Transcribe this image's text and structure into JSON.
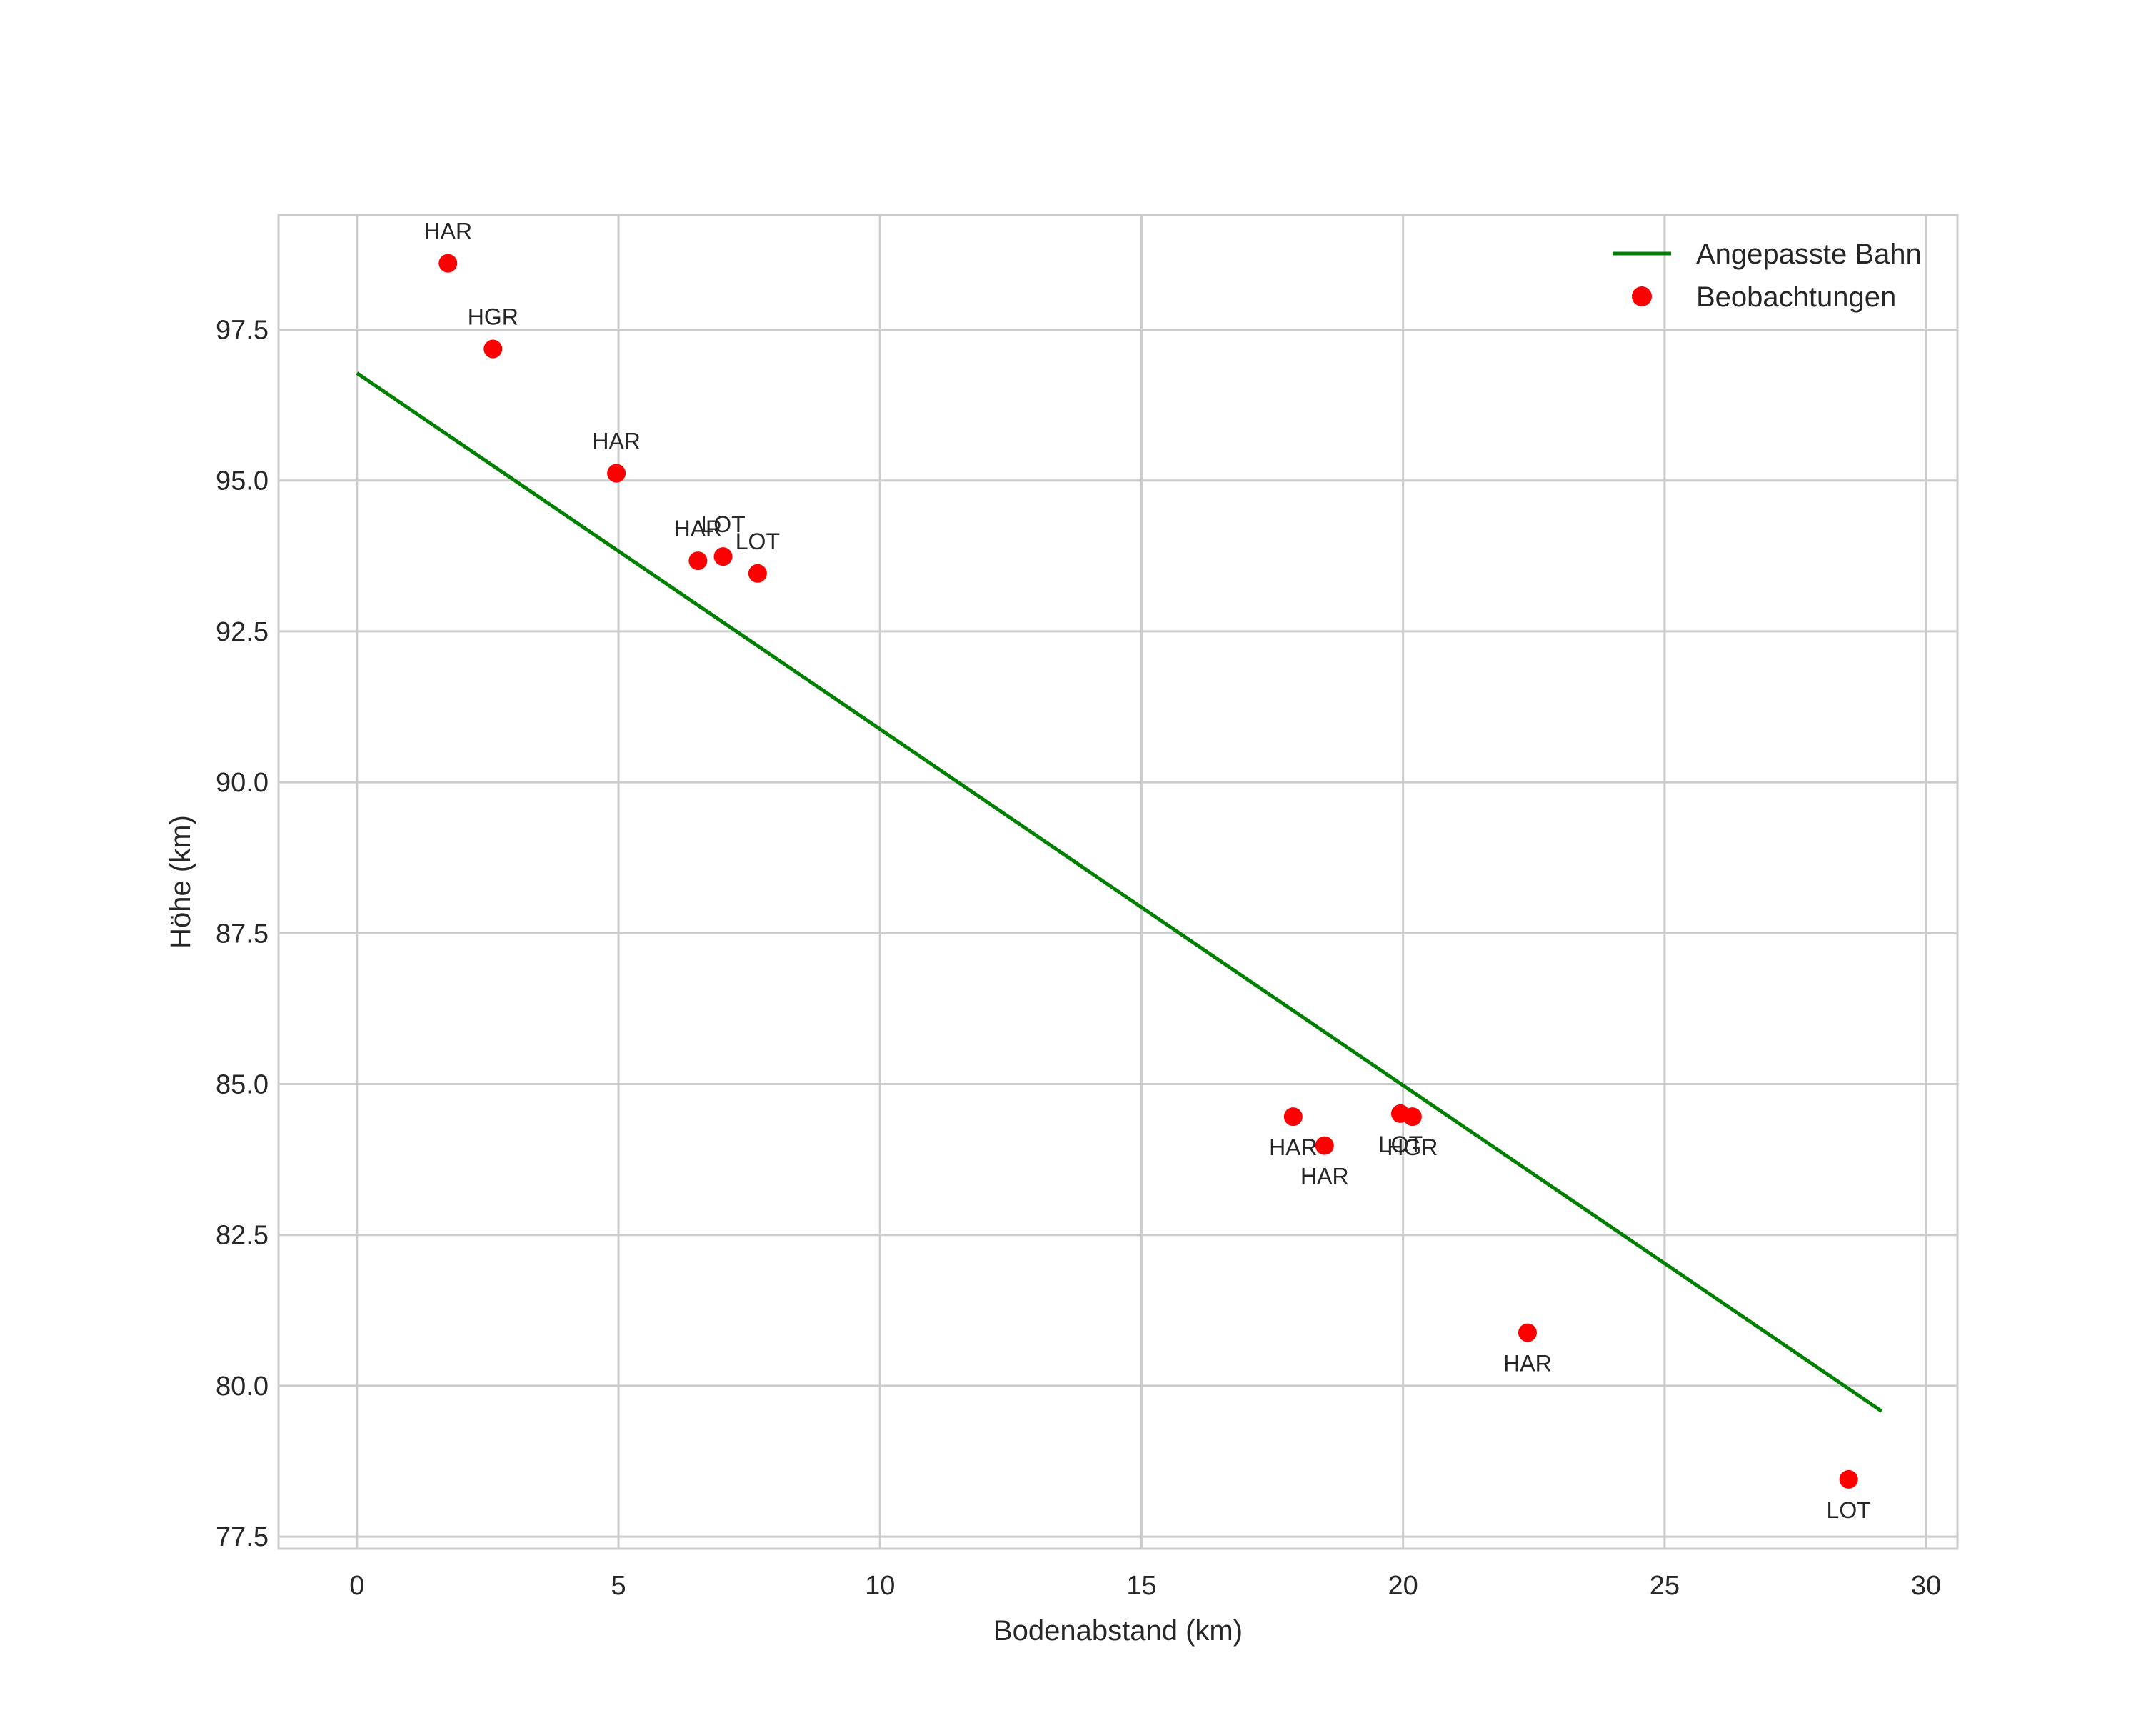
{
  "chart_data": {
    "type": "scatter",
    "title": "",
    "xlabel": "Bodenabstand (km)",
    "ylabel": "Höhe (km)",
    "xlim": [
      -1.5,
      30.6
    ],
    "ylim": [
      77.3,
      99.4
    ],
    "grid": true,
    "legend_position": "top-right",
    "x_ticks": [
      0,
      5,
      10,
      15,
      20,
      25,
      30
    ],
    "x_tick_labels": [
      "0",
      "5",
      "10",
      "15",
      "20",
      "25",
      "30"
    ],
    "y_ticks": [
      77.5,
      80.0,
      82.5,
      85.0,
      87.5,
      90.0,
      92.5,
      95.0,
      97.5
    ],
    "y_tick_labels": [
      "77.5",
      "80.0",
      "82.5",
      "85.0",
      "87.5",
      "90.0",
      "92.5",
      "95.0",
      "97.5"
    ],
    "series": [
      {
        "name": "Angepasste Bahn",
        "kind": "line",
        "color": "#008000",
        "x": [
          0,
          29.15
        ],
        "y": [
          96.78,
          79.58
        ]
      },
      {
        "name": "Beobachtungen",
        "kind": "scatter",
        "color": "#ff0000",
        "points": [
          {
            "x": 1.74,
            "y": 98.6,
            "label": "HAR",
            "label_pos": "above"
          },
          {
            "x": 2.6,
            "y": 97.18,
            "label": "HGR",
            "label_pos": "above"
          },
          {
            "x": 4.96,
            "y": 95.12,
            "label": "HAR",
            "label_pos": "above"
          },
          {
            "x": 6.52,
            "y": 93.67,
            "label": "HAR",
            "label_pos": "above"
          },
          {
            "x": 7.0,
            "y": 93.74,
            "label": "LOT",
            "label_pos": "above"
          },
          {
            "x": 7.66,
            "y": 93.46,
            "label": "LOT",
            "label_pos": "above"
          },
          {
            "x": 17.9,
            "y": 84.46,
            "label": "HAR",
            "label_pos": "below"
          },
          {
            "x": 18.5,
            "y": 83.98,
            "label": "HAR",
            "label_pos": "below"
          },
          {
            "x": 19.95,
            "y": 84.51,
            "label": "LOT",
            "label_pos": "below"
          },
          {
            "x": 20.18,
            "y": 84.46,
            "label": "HGR",
            "label_pos": "below"
          },
          {
            "x": 22.38,
            "y": 80.88,
            "label": "HAR",
            "label_pos": "below"
          },
          {
            "x": 28.52,
            "y": 78.45,
            "label": "LOT",
            "label_pos": "below"
          }
        ]
      }
    ]
  }
}
